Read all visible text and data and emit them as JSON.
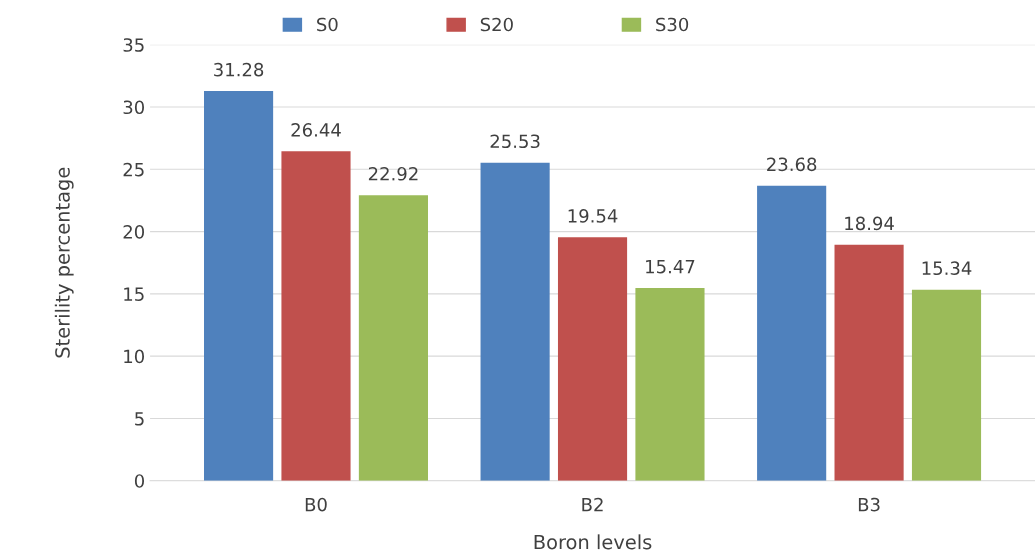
{
  "chart_data": {
    "type": "bar",
    "xlabel": "Boron levels",
    "ylabel": "Sterility percentage",
    "categories": [
      "B0",
      "B2",
      "B3"
    ],
    "series": [
      {
        "name": "S0",
        "color": "#4f81bd",
        "values": [
          31.28,
          25.53,
          23.68
        ]
      },
      {
        "name": "S20",
        "color": "#c0504d",
        "values": [
          26.44,
          19.54,
          18.94
        ]
      },
      {
        "name": "S30",
        "color": "#9bbb59",
        "values": [
          22.92,
          15.47,
          15.34
        ]
      }
    ],
    "ylim": [
      0,
      35
    ],
    "yticks": [
      0,
      5,
      10,
      15,
      20,
      25,
      30,
      35
    ],
    "grid": "y",
    "legend": "top",
    "data_labels": true
  }
}
